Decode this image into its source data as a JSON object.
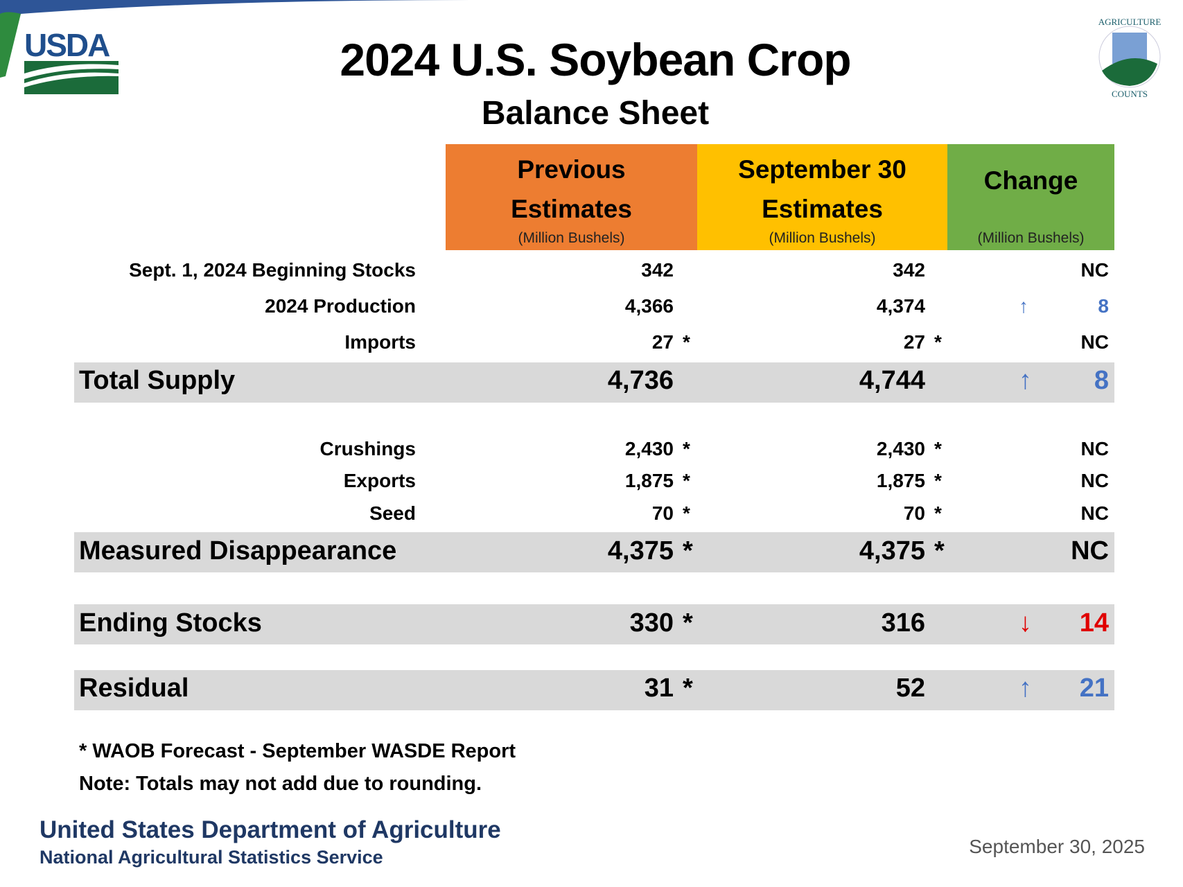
{
  "header": {
    "title": "2024 U.S. Soybean Crop",
    "subtitle": "Balance Sheet",
    "logo_left": "USDA",
    "logo_right": "AGRICULTURE COUNTS"
  },
  "columns": [
    {
      "line1": "Previous",
      "line2": "Estimates",
      "unit": "(Million Bushels)",
      "color": "#ED7D31"
    },
    {
      "line1": "September 30",
      "line2": "Estimates",
      "unit": "(Million Bushels)",
      "color": "#FFC000"
    },
    {
      "line1": "Change",
      "unit": "(Million Bushels)",
      "color": "#70AD47"
    }
  ],
  "rows": [
    {
      "label": "Sept. 1, 2024 Beginning Stocks",
      "prev": "342",
      "prev_mark": "",
      "sept": "342",
      "sept_mark": "",
      "change": "NC",
      "arrow": ""
    },
    {
      "label": "2024 Production",
      "prev": "4,366",
      "prev_mark": "",
      "sept": "4,374",
      "sept_mark": "",
      "change": "8",
      "arrow": "↑"
    },
    {
      "label": "Imports",
      "prev": "27",
      "prev_mark": "*",
      "sept": "27",
      "sept_mark": "*",
      "change": "NC",
      "arrow": ""
    },
    {
      "label": "Total Supply",
      "prev": "4,736",
      "prev_mark": "",
      "sept": "4,744",
      "sept_mark": "",
      "change": "8",
      "arrow": "↑"
    },
    {
      "label": "Crushings",
      "prev": "2,430",
      "prev_mark": "*",
      "sept": "2,430",
      "sept_mark": "*",
      "change": "NC",
      "arrow": ""
    },
    {
      "label": "Exports",
      "prev": "1,875",
      "prev_mark": "*",
      "sept": "1,875",
      "sept_mark": "*",
      "change": "NC",
      "arrow": ""
    },
    {
      "label": "Seed",
      "prev": "70",
      "prev_mark": "*",
      "sept": "70",
      "sept_mark": "*",
      "change": "NC",
      "arrow": ""
    },
    {
      "label": "Measured Disappearance",
      "prev": "4,375",
      "prev_mark": "*",
      "sept": "4,375",
      "sept_mark": "*",
      "change": "NC",
      "arrow": ""
    },
    {
      "label": "Ending Stocks",
      "prev": "330",
      "prev_mark": "*",
      "sept": "316",
      "sept_mark": "",
      "change": "14",
      "arrow": "↓"
    },
    {
      "label": "Residual",
      "prev": "31",
      "prev_mark": "*",
      "sept": "52",
      "sept_mark": "",
      "change": "21",
      "arrow": "↑"
    }
  ],
  "notes": [
    "* WAOB Forecast - September WASDE Report",
    "Note: Totals may not add due to rounding."
  ],
  "footer": {
    "org": "United States Department of Agriculture",
    "agency": "National Agricultural Statistics Service",
    "date": "September 30, 2025"
  },
  "colors": {
    "up": "#4472C4",
    "down": "#E00000",
    "band": "#D9D9D9"
  }
}
